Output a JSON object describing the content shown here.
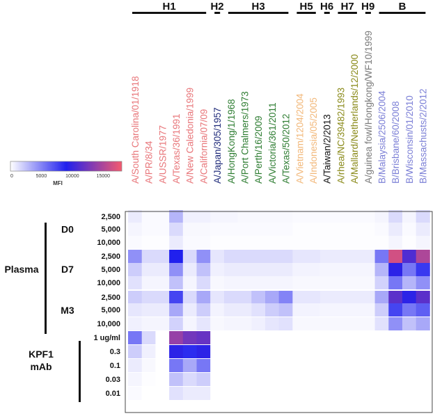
{
  "chart_data": {
    "type": "heatmap",
    "title": "",
    "groups": [
      {
        "label": "H1",
        "first": 0,
        "last": 5
      },
      {
        "label": "H2",
        "first": 6,
        "last": 6
      },
      {
        "label": "H3",
        "first": 7,
        "last": 11
      },
      {
        "label": "H5",
        "first": 12,
        "last": 13
      },
      {
        "label": "H6",
        "first": 14,
        "last": 14
      },
      {
        "label": "H7",
        "first": 15,
        "last": 16
      },
      {
        "label": "H9",
        "first": 17,
        "last": 17
      },
      {
        "label": "B",
        "first": 18,
        "last": 21
      }
    ],
    "columns": [
      {
        "label": "A/South Carolina/01/1918",
        "color": "#e8767a"
      },
      {
        "label": "A/PR/8/34",
        "color": "#e8767a"
      },
      {
        "label": "A/USSR/1977",
        "color": "#e8767a"
      },
      {
        "label": "A/Texas/36/1991",
        "color": "#e8767a"
      },
      {
        "label": "A/New Caledonia/1999",
        "color": "#e8767a"
      },
      {
        "label": "A/California/07/09",
        "color": "#e8767a"
      },
      {
        "label": "A/Japan/305/1957",
        "color": "#1f2a7a"
      },
      {
        "label": "A/HongKong/1/1968",
        "color": "#2e7d32"
      },
      {
        "label": "A/Port Chalmers/1973",
        "color": "#2e7d32"
      },
      {
        "label": "A/Perth/16/2009",
        "color": "#2e7d32"
      },
      {
        "label": "A/Victoria/361/2011",
        "color": "#2e7d32"
      },
      {
        "label": "A/Texas/50/2012",
        "color": "#2e7d32"
      },
      {
        "label": "A/Vietnam/1204/2004",
        "color": "#f2b87a"
      },
      {
        "label": "A/Indonesia/05/2005",
        "color": "#f2b87a"
      },
      {
        "label": "A/Taiwan/2/2013",
        "color": "#111111"
      },
      {
        "label": "A/rhea/NC/39482/1993",
        "color": "#8a8a1a"
      },
      {
        "label": "A/Mallard/Netherlands/12/2000",
        "color": "#8a8a1a"
      },
      {
        "label": "A/guinea fowl/Hongkong/WF10/1999",
        "color": "#7a7a7a"
      },
      {
        "label": "B/Malaysia/2506/2004",
        "color": "#7b7fd6"
      },
      {
        "label": "B/Brisbane/60/2008",
        "color": "#7b7fd6"
      },
      {
        "label": "B/Wisconsin/01/2010",
        "color": "#7b7fd6"
      },
      {
        "label": "B/Massachusts/2/2012",
        "color": "#7b7fd6"
      }
    ],
    "row_blocks": [
      {
        "label": "Plasma",
        "first": 0,
        "last": 8
      },
      {
        "label": "KPF1\nmAb",
        "first": 9,
        "last": 13
      }
    ],
    "row_subgroups": [
      {
        "label": "D0",
        "first": 0,
        "last": 2
      },
      {
        "label": "D7",
        "first": 3,
        "last": 5
      },
      {
        "label": "M3",
        "first": 6,
        "last": 8
      }
    ],
    "rows": [
      "2,500",
      "5,000",
      "10,000",
      "2,500",
      "5,000",
      "10,000",
      "2,500",
      "5,000",
      "10,000",
      "1 ug/ml",
      "0.3",
      "0.1",
      "0.03",
      "0.01"
    ],
    "values": [
      [
        800,
        200,
        200,
        3000,
        600,
        600,
        400,
        400,
        300,
        300,
        300,
        300,
        200,
        200,
        200,
        200,
        200,
        200,
        400,
        1500,
        400,
        1500
      ],
      [
        400,
        200,
        200,
        1500,
        300,
        300,
        200,
        200,
        200,
        200,
        200,
        200,
        100,
        100,
        100,
        100,
        100,
        100,
        200,
        800,
        200,
        800
      ],
      [
        200,
        100,
        100,
        800,
        200,
        200,
        100,
        100,
        100,
        100,
        100,
        100,
        100,
        100,
        100,
        100,
        100,
        100,
        100,
        400,
        100,
        400
      ],
      [
        4500,
        1500,
        1500,
        9000,
        1500,
        4500,
        1000,
        1500,
        1500,
        1500,
        1500,
        1500,
        1000,
        1000,
        800,
        800,
        800,
        800,
        5500,
        16500,
        11000,
        15000
      ],
      [
        2000,
        800,
        800,
        4500,
        800,
        2500,
        600,
        800,
        800,
        800,
        800,
        800,
        500,
        500,
        400,
        400,
        400,
        400,
        3000,
        9500,
        5500,
        8000
      ],
      [
        1200,
        400,
        400,
        2500,
        400,
        1500,
        300,
        400,
        400,
        400,
        400,
        400,
        300,
        300,
        300,
        300,
        300,
        300,
        1800,
        5500,
        3000,
        4500
      ],
      [
        2000,
        1500,
        1500,
        7500,
        1500,
        3500,
        1000,
        1500,
        1500,
        2500,
        3500,
        5000,
        1000,
        1000,
        800,
        800,
        800,
        800,
        3500,
        11500,
        9500,
        11500
      ],
      [
        1000,
        800,
        800,
        3500,
        800,
        2000,
        500,
        800,
        800,
        1200,
        2000,
        2500,
        500,
        500,
        400,
        400,
        400,
        400,
        2000,
        7500,
        5500,
        6500
      ],
      [
        600,
        400,
        400,
        1800,
        400,
        1000,
        300,
        400,
        400,
        600,
        1000,
        1200,
        300,
        300,
        300,
        300,
        300,
        300,
        1200,
        4500,
        2500,
        3500
      ],
      [
        5500,
        1500,
        0,
        14000,
        12500,
        12000,
        0,
        0,
        0,
        0,
        0,
        0,
        0,
        0,
        0,
        0,
        0,
        0,
        0,
        0,
        0,
        0
      ],
      [
        2000,
        600,
        0,
        9500,
        8500,
        9500,
        0,
        0,
        0,
        0,
        0,
        0,
        0,
        0,
        0,
        0,
        0,
        0,
        0,
        0,
        0,
        0
      ],
      [
        800,
        300,
        0,
        5500,
        3500,
        5500,
        0,
        0,
        0,
        0,
        0,
        0,
        0,
        0,
        0,
        0,
        0,
        0,
        0,
        0,
        0,
        0
      ],
      [
        400,
        100,
        0,
        2500,
        1500,
        2000,
        0,
        0,
        0,
        0,
        0,
        0,
        0,
        0,
        0,
        0,
        0,
        0,
        0,
        0,
        0,
        0
      ],
      [
        200,
        0,
        0,
        1200,
        800,
        800,
        0,
        0,
        0,
        0,
        0,
        0,
        0,
        0,
        0,
        0,
        0,
        0,
        0,
        0,
        0,
        0
      ]
    ],
    "colorbar": {
      "label": "MFI",
      "range": [
        0,
        18000
      ],
      "ticks": [
        0,
        5000,
        10000,
        15000
      ],
      "tick_labels": [
        "0",
        "5000",
        "10000",
        "15000"
      ],
      "stops": [
        "#ffffff",
        "#2020ee",
        "#f45a6e"
      ]
    }
  }
}
